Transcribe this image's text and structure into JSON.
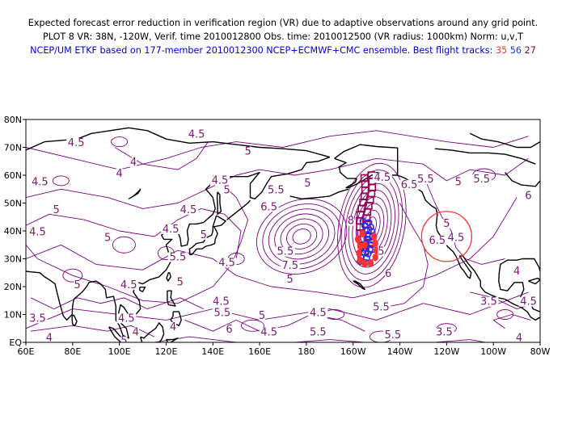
{
  "header": {
    "line1": "Expected forecast error reduction in verification region (VR) due to adaptive observations around any grid point.",
    "line2": "PLOT 8 VR: 38N, -120W, Verif. time 2010012800 Obs. time: 2010012500 (VR radius: 1000km) Norm: u,v,T",
    "line3_prefix": "NCEP/UM ETKF based on 177-member 2010012300 NCEP+ECMWF+CMC ensemble. Best flight tracks:",
    "track1": "35",
    "track2": "56",
    "track3": "27"
  },
  "map": {
    "lat_labels": [
      "80N",
      "70N",
      "60N",
      "50N",
      "40N",
      "30N",
      "20N",
      "10N",
      "EQ"
    ],
    "lon_labels": [
      "60E",
      "80E",
      "100E",
      "120E",
      "140E",
      "160E",
      "180",
      "160W",
      "140W",
      "120W",
      "100W",
      "80W"
    ],
    "contour_labels": [
      {
        "t": "4.5",
        "lon": 81.5,
        "lat": 71
      },
      {
        "t": "4.5",
        "lon": 133,
        "lat": 74
      },
      {
        "t": "5",
        "lon": 155,
        "lat": 68
      },
      {
        "t": "4",
        "lon": 106,
        "lat": 64
      },
      {
        "t": "4",
        "lon": 100,
        "lat": 60
      },
      {
        "t": "4.5",
        "lon": 66,
        "lat": 57
      },
      {
        "t": "4.5",
        "lon": 143,
        "lat": 57.5
      },
      {
        "t": "5",
        "lon": 146,
        "lat": 54
      },
      {
        "t": "5.5",
        "lon": 167,
        "lat": 54
      },
      {
        "t": "6.5",
        "lon": 164,
        "lat": 48
      },
      {
        "t": "5",
        "lon": 180.5,
        "lat": 56.5
      },
      {
        "t": "4.5",
        "lon": -147.5,
        "lat": 58.5
      },
      {
        "t": "6.5",
        "lon": -136,
        "lat": 56
      },
      {
        "t": "5.5",
        "lon": -129,
        "lat": 58
      },
      {
        "t": "5",
        "lon": -115,
        "lat": 57
      },
      {
        "t": "5.5",
        "lon": -105,
        "lat": 58
      },
      {
        "t": "6",
        "lon": -85,
        "lat": 52
      },
      {
        "t": "5",
        "lon": 73,
        "lat": 47
      },
      {
        "t": "4.5",
        "lon": 129.5,
        "lat": 47
      },
      {
        "t": "8",
        "lon": -161,
        "lat": 43
      },
      {
        "t": "4.5",
        "lon": 65,
        "lat": 39
      },
      {
        "t": "5",
        "lon": 95,
        "lat": 37
      },
      {
        "t": "4.5",
        "lon": 122,
        "lat": 40
      },
      {
        "t": "5",
        "lon": 136,
        "lat": 38
      },
      {
        "t": "6.5",
        "lon": -124,
        "lat": 36
      },
      {
        "t": "4.5",
        "lon": -116,
        "lat": 37
      },
      {
        "t": "5",
        "lon": -120,
        "lat": 42
      },
      {
        "t": "5.5",
        "lon": 125,
        "lat": 30
      },
      {
        "t": "4.5",
        "lon": 146,
        "lat": 28
      },
      {
        "t": "5.5",
        "lon": 171,
        "lat": 32
      },
      {
        "t": "7.5",
        "lon": 173,
        "lat": 27
      },
      {
        "t": "5",
        "lon": 173,
        "lat": 22
      },
      {
        "t": "6",
        "lon": -145,
        "lat": 24
      },
      {
        "t": "5",
        "lon": 126,
        "lat": 21
      },
      {
        "t": "4.5",
        "lon": 104,
        "lat": 20
      },
      {
        "t": "5",
        "lon": 82,
        "lat": 20
      },
      {
        "t": "4.5",
        "lon": 143.5,
        "lat": 14
      },
      {
        "t": "5.5",
        "lon": 144,
        "lat": 10
      },
      {
        "t": "5",
        "lon": 161,
        "lat": 9
      },
      {
        "t": "4.5",
        "lon": -175,
        "lat": 10
      },
      {
        "t": "5.5",
        "lon": -148,
        "lat": 12
      },
      {
        "t": "3.5",
        "lon": 65,
        "lat": 8
      },
      {
        "t": "4.5",
        "lon": 103,
        "lat": 8
      },
      {
        "t": "4",
        "lon": 107,
        "lat": 3
      },
      {
        "t": "4",
        "lon": 123,
        "lat": 5
      },
      {
        "t": "6",
        "lon": 147,
        "lat": 4
      },
      {
        "t": "4.5",
        "lon": 164,
        "lat": 3
      },
      {
        "t": "5.5",
        "lon": -175,
        "lat": 3
      },
      {
        "t": "5.5",
        "lon": -143,
        "lat": 2
      },
      {
        "t": "3.5",
        "lon": -121,
        "lat": 3
      },
      {
        "t": "4",
        "lon": 70,
        "lat": 1
      },
      {
        "t": "5",
        "lon": 102,
        "lat": 0
      },
      {
        "t": "3.5",
        "lon": -102,
        "lat": 14
      },
      {
        "t": "4.5",
        "lon": -85,
        "lat": 14
      },
      {
        "t": "4",
        "lon": -89,
        "lat": 1
      },
      {
        "t": "4",
        "lon": -90,
        "lat": 25
      },
      {
        "t": "5",
        "lon": -148,
        "lat": 32
      }
    ],
    "vr_circle": {
      "lon": -120,
      "lat": 38
    },
    "colors": {
      "contour": "#800080",
      "coast": "#000000",
      "vr_circle": "#ff3333",
      "track_35": "#ff3333",
      "track_56": "#2233ee",
      "track_27": "#990055"
    }
  }
}
